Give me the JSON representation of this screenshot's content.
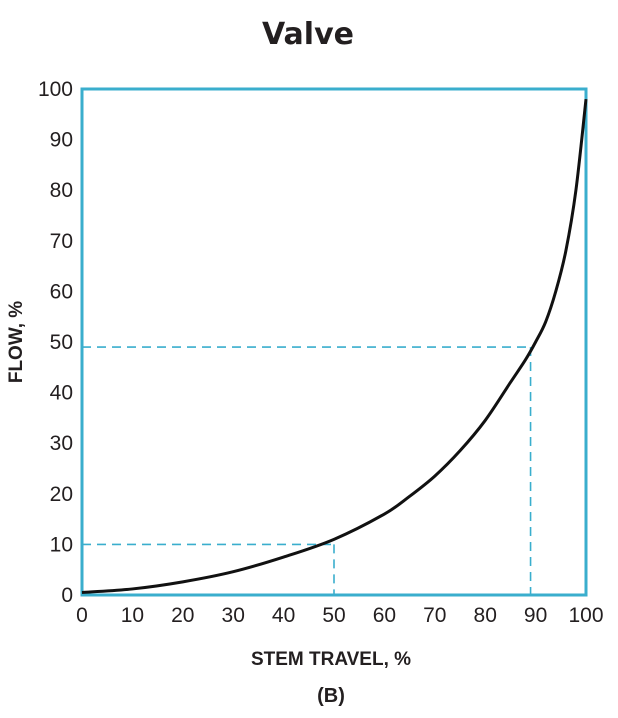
{
  "chart_data": {
    "type": "line",
    "title": "Valve",
    "xlabel": "STEM TRAVEL, %",
    "ylabel": "FLOW, %",
    "caption": "(B)",
    "xlim": [
      0,
      100
    ],
    "ylim": [
      0,
      100
    ],
    "x_ticks": [
      "0",
      "10",
      "20",
      "30",
      "40",
      "50",
      "60",
      "70",
      "80",
      "90",
      "100"
    ],
    "y_ticks": [
      "0",
      "10",
      "20",
      "30",
      "40",
      "50",
      "60",
      "70",
      "80",
      "90",
      "100"
    ],
    "grid": false,
    "series": [
      {
        "x": [
          0,
          10,
          20,
          30,
          40,
          50,
          60,
          65,
          70,
          75,
          80,
          85,
          88,
          90,
          92,
          94,
          96,
          98,
          100
        ],
        "y": [
          0.5,
          1.2,
          2.6,
          4.6,
          7.5,
          11,
          16,
          19.5,
          23.5,
          28.5,
          34.5,
          42,
          46.5,
          50,
          54,
          60,
          68,
          80,
          98
        ]
      }
    ],
    "reference_points": [
      {
        "x": 50,
        "y": 10
      },
      {
        "x": 89,
        "y": 49
      }
    ],
    "colors": {
      "frame": "#3aaecd",
      "curve": "#111111",
      "reference": "#3aaecd",
      "text": "#231f20"
    }
  }
}
